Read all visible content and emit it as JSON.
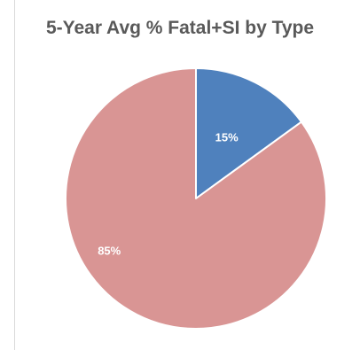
{
  "chart_data": {
    "type": "pie",
    "title": "5-Year Avg % Fatal+SI by Type",
    "categories": [
      "",
      ""
    ],
    "values": [
      15,
      85
    ],
    "labels": [
      "15%",
      "85%"
    ],
    "colors": [
      "#4f81bd",
      "#d99594"
    ],
    "start_angle_deg": 0,
    "direction": "clockwise",
    "legend": "none"
  }
}
